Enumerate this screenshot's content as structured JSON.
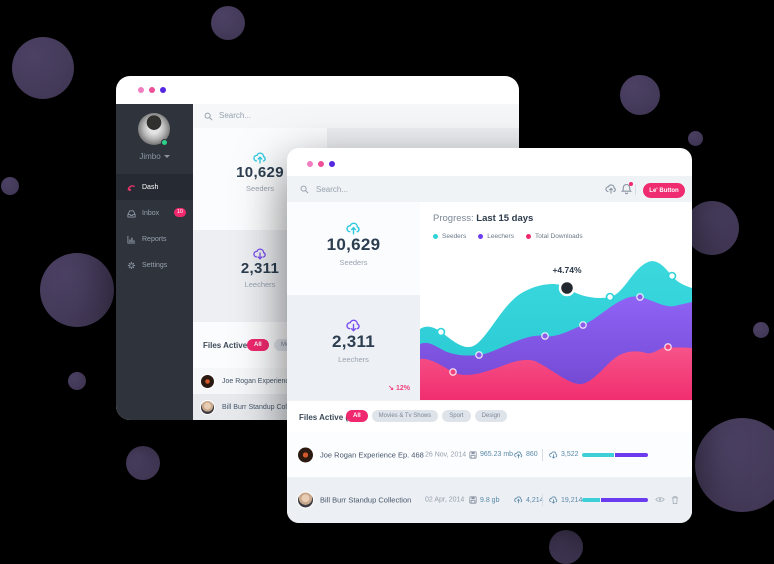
{
  "theme": {
    "accent_pink": "#f0286e",
    "teal": "#2cd3d9",
    "purple": "#7a4ff0",
    "violet_dot": "#5627e0",
    "chart_pink": "#f23f78",
    "bg_circle": "#453a59",
    "online_green": "#2fd087"
  },
  "back_window": {
    "search": {
      "placeholder": "Search..."
    },
    "user": {
      "name": "Jimbo"
    },
    "sidebar": [
      {
        "label": "Dash"
      },
      {
        "label": "Inbox",
        "badge": "10"
      },
      {
        "label": "Reports"
      },
      {
        "label": "Settings"
      }
    ],
    "stats": {
      "seeders": {
        "value": "10,629",
        "label": "Seeders"
      },
      "leechers": {
        "value": "2,311",
        "label": "Leechers"
      }
    },
    "files": {
      "title": "Files Active (6)",
      "filters": [
        {
          "label": "All"
        },
        {
          "label": "Movies & Tv Shows"
        }
      ],
      "rows": [
        {
          "title": "Joe Rogan Experience Ep. 468"
        },
        {
          "title": "Bill Burr Standup Collection"
        }
      ]
    }
  },
  "front_window": {
    "search": {
      "placeholder": "Search..."
    },
    "toolbar": {
      "button_label": "Le' Button"
    },
    "stats": {
      "seeders": {
        "value": "10,629",
        "label": "Seeders"
      },
      "leechers": {
        "value": "2,311",
        "label": "Leechers",
        "delta": "↘ 12%"
      }
    },
    "chart": {
      "title_prefix": "Progress:",
      "title_bold": " Last 15 days",
      "legend": [
        {
          "label": "Seeders",
          "color": "#2cd3d9"
        },
        {
          "label": "Leechers",
          "color": "#6c3ef0"
        },
        {
          "label": "Total Downloads",
          "color": "#f0286e"
        }
      ],
      "annotation": "+4.74%"
    },
    "files": {
      "title": "Files Active (6)",
      "filters": [
        {
          "label": "All"
        },
        {
          "label": "Movies & Tv Shows"
        },
        {
          "label": "Sport"
        },
        {
          "label": "Design"
        }
      ],
      "rows": [
        {
          "title": "Joe Rogan Experience Ep. 468",
          "date": "26 Nov, 2014",
          "size": "965.23 mb",
          "uploads": "860",
          "downloads": "3,522",
          "progress_teal_pct": 48
        },
        {
          "title": "Bill Burr Standup Collection",
          "date": "02 Apr, 2014",
          "size": "9.8 gb",
          "uploads": "4,214",
          "downloads": "19,214",
          "progress_teal_pct": 28
        }
      ]
    }
  },
  "chart_data": {
    "type": "area",
    "title": "Progress: Last 15 days",
    "legend_position": "top",
    "x_relative": [
      0,
      1,
      2,
      3,
      4,
      5,
      6,
      7,
      8,
      9,
      10
    ],
    "series": [
      {
        "name": "Seeders",
        "color": "#2cd3d9",
        "values_relative": [
          46,
          44,
          34,
          62,
          72,
          72,
          66,
          89,
          80,
          80,
          72
        ],
        "annotation": {
          "x": 5,
          "label": "+4.74%"
        }
      },
      {
        "name": "Leechers",
        "color": "#7a4ff0",
        "values_relative": [
          36,
          30,
          29,
          42,
          41,
          48,
          52,
          66,
          62,
          60,
          63
        ]
      },
      {
        "name": "Total Downloads",
        "color": "#f0286e",
        "values_relative": [
          26,
          18,
          22,
          25,
          24,
          11,
          26,
          30,
          28,
          34,
          33
        ]
      }
    ],
    "note": "no numeric axes are shown in the UI; values are relative estimates of the stacked wave heights"
  }
}
